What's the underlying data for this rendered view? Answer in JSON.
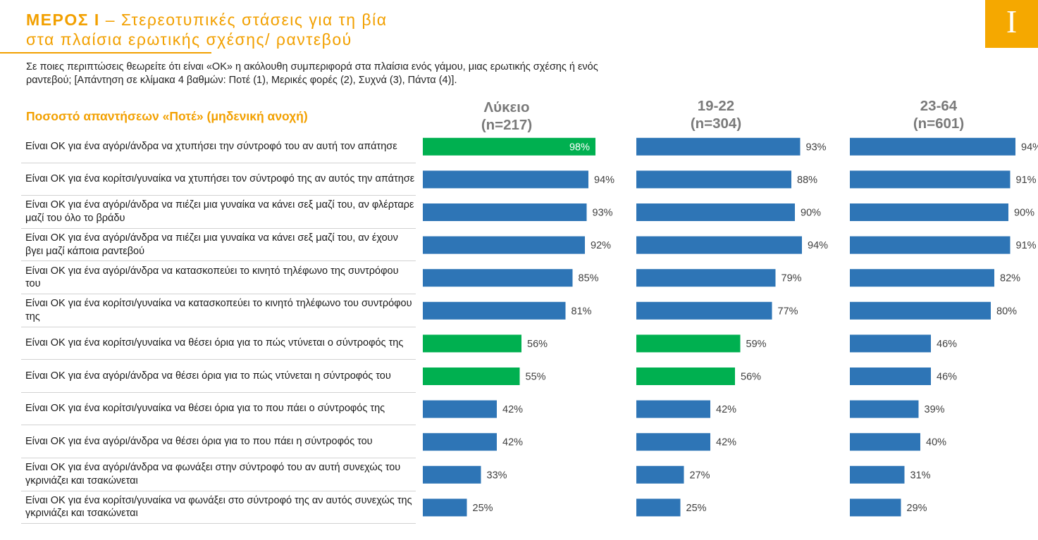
{
  "header": {
    "title_bold": "ΜΕΡΟΣ Ι",
    "title_line1_rest": " – Στερεοτυπικές στάσεις για τη βία",
    "title_line2": "στα πλαίσια ερωτικής σχέσης/ ραντεβού",
    "badge": "I",
    "subtitle": "Σε ποιες περιπτώσεις θεωρείτε ότι είναι «ΟΚ» η ακόλουθη συμπεριφορά στα πλαίσια ενός γάμου, μιας ερωτικής σχέσης ή ενός ραντεβού; [Απάντηση σε κλίμακα 4 βαθμών: Ποτέ (1), Μερικές φορές (2), Συχνά (3), Πάντα (4)].",
    "section_label": "Ποσοστό απαντήσεων «Ποτέ» (μηδενική ανοχή)"
  },
  "colors": {
    "accent": "#f2a000",
    "bar_default": "#2e75b6",
    "bar_highlight": "#00b050",
    "label_white": "#ffffff",
    "label_dark": "#404040"
  },
  "chart_data": {
    "type": "bar",
    "orientation": "horizontal",
    "unit": "%",
    "categories": [
      "Είναι ΟΚ για ένα αγόρι/άνδρα να χτυπήσει την σύντροφό του αν αυτή τον απάτησε",
      "Είναι ΟΚ για ένα κορίτσι/γυναίκα να χτυπήσει τον σύντροφό της αν αυτός την απάτησε",
      "Είναι ΟΚ για ένα αγόρι/άνδρα να πιέζει μια γυναίκα να κάνει σεξ μαζί του, αν φλέρταρε μαζί του όλο το βράδυ",
      "Είναι ΟΚ για ένα αγόρι/άνδρα να πιέζει μια γυναίκα να κάνει σεξ μαζί του, αν έχουν βγει μαζί κάποια ραντεβού",
      "Είναι ΟΚ για ένα αγόρι/άνδρα να κατασκοπεύει το κινητό τηλέφωνο της συντρόφου του",
      "Είναι ΟΚ για ένα κορίτσι/γυναίκα να κατασκοπεύει το κινητό τηλέφωνο του συντρόφου της",
      "Είναι ΟΚ για ένα κορίτσι/γυναίκα να θέσει όρια για το πώς ντύνεται ο σύντροφός της",
      "Είναι ΟΚ για ένα αγόρι/άνδρα να θέσει όρια για το πώς ντύνεται η σύντροφός του",
      "Είναι ΟΚ για ένα κορίτσι/γυναίκα να θέσει όρια για το που πάει ο σύντροφός της",
      "Είναι ΟΚ για ένα αγόρι/άνδρα να θέσει όρια για το που πάει η σύντροφός του",
      "Είναι ΟΚ για ένα αγόρι/άνδρα να φωνάξει στην σύντροφό του αν αυτή συνεχώς του γκρινιάζει και τσακώνεται",
      "Είναι ΟΚ για ένα κορίτσι/γυναίκα να φωνάξει στο σύντροφό της αν αυτός συνεχώς της γκρινιάζει και τσακώνεται"
    ],
    "series": [
      {
        "name": "Λύκειο",
        "sample": "(n=217)",
        "values": [
          98,
          94,
          93,
          92,
          85,
          81,
          56,
          55,
          42,
          42,
          33,
          25
        ],
        "highlight": [
          0,
          6,
          7
        ]
      },
      {
        "name": "19-22",
        "sample": "(n=304)",
        "values": [
          93,
          88,
          90,
          94,
          79,
          77,
          59,
          56,
          42,
          42,
          27,
          25
        ],
        "highlight": [
          6,
          7
        ]
      },
      {
        "name": "23-64",
        "sample": "(n=601)",
        "values": [
          94,
          91,
          90,
          91,
          82,
          80,
          46,
          46,
          39,
          40,
          31,
          29
        ],
        "highlight": []
      }
    ],
    "xlim": [
      0,
      100
    ],
    "grid": false,
    "legend": "none"
  }
}
